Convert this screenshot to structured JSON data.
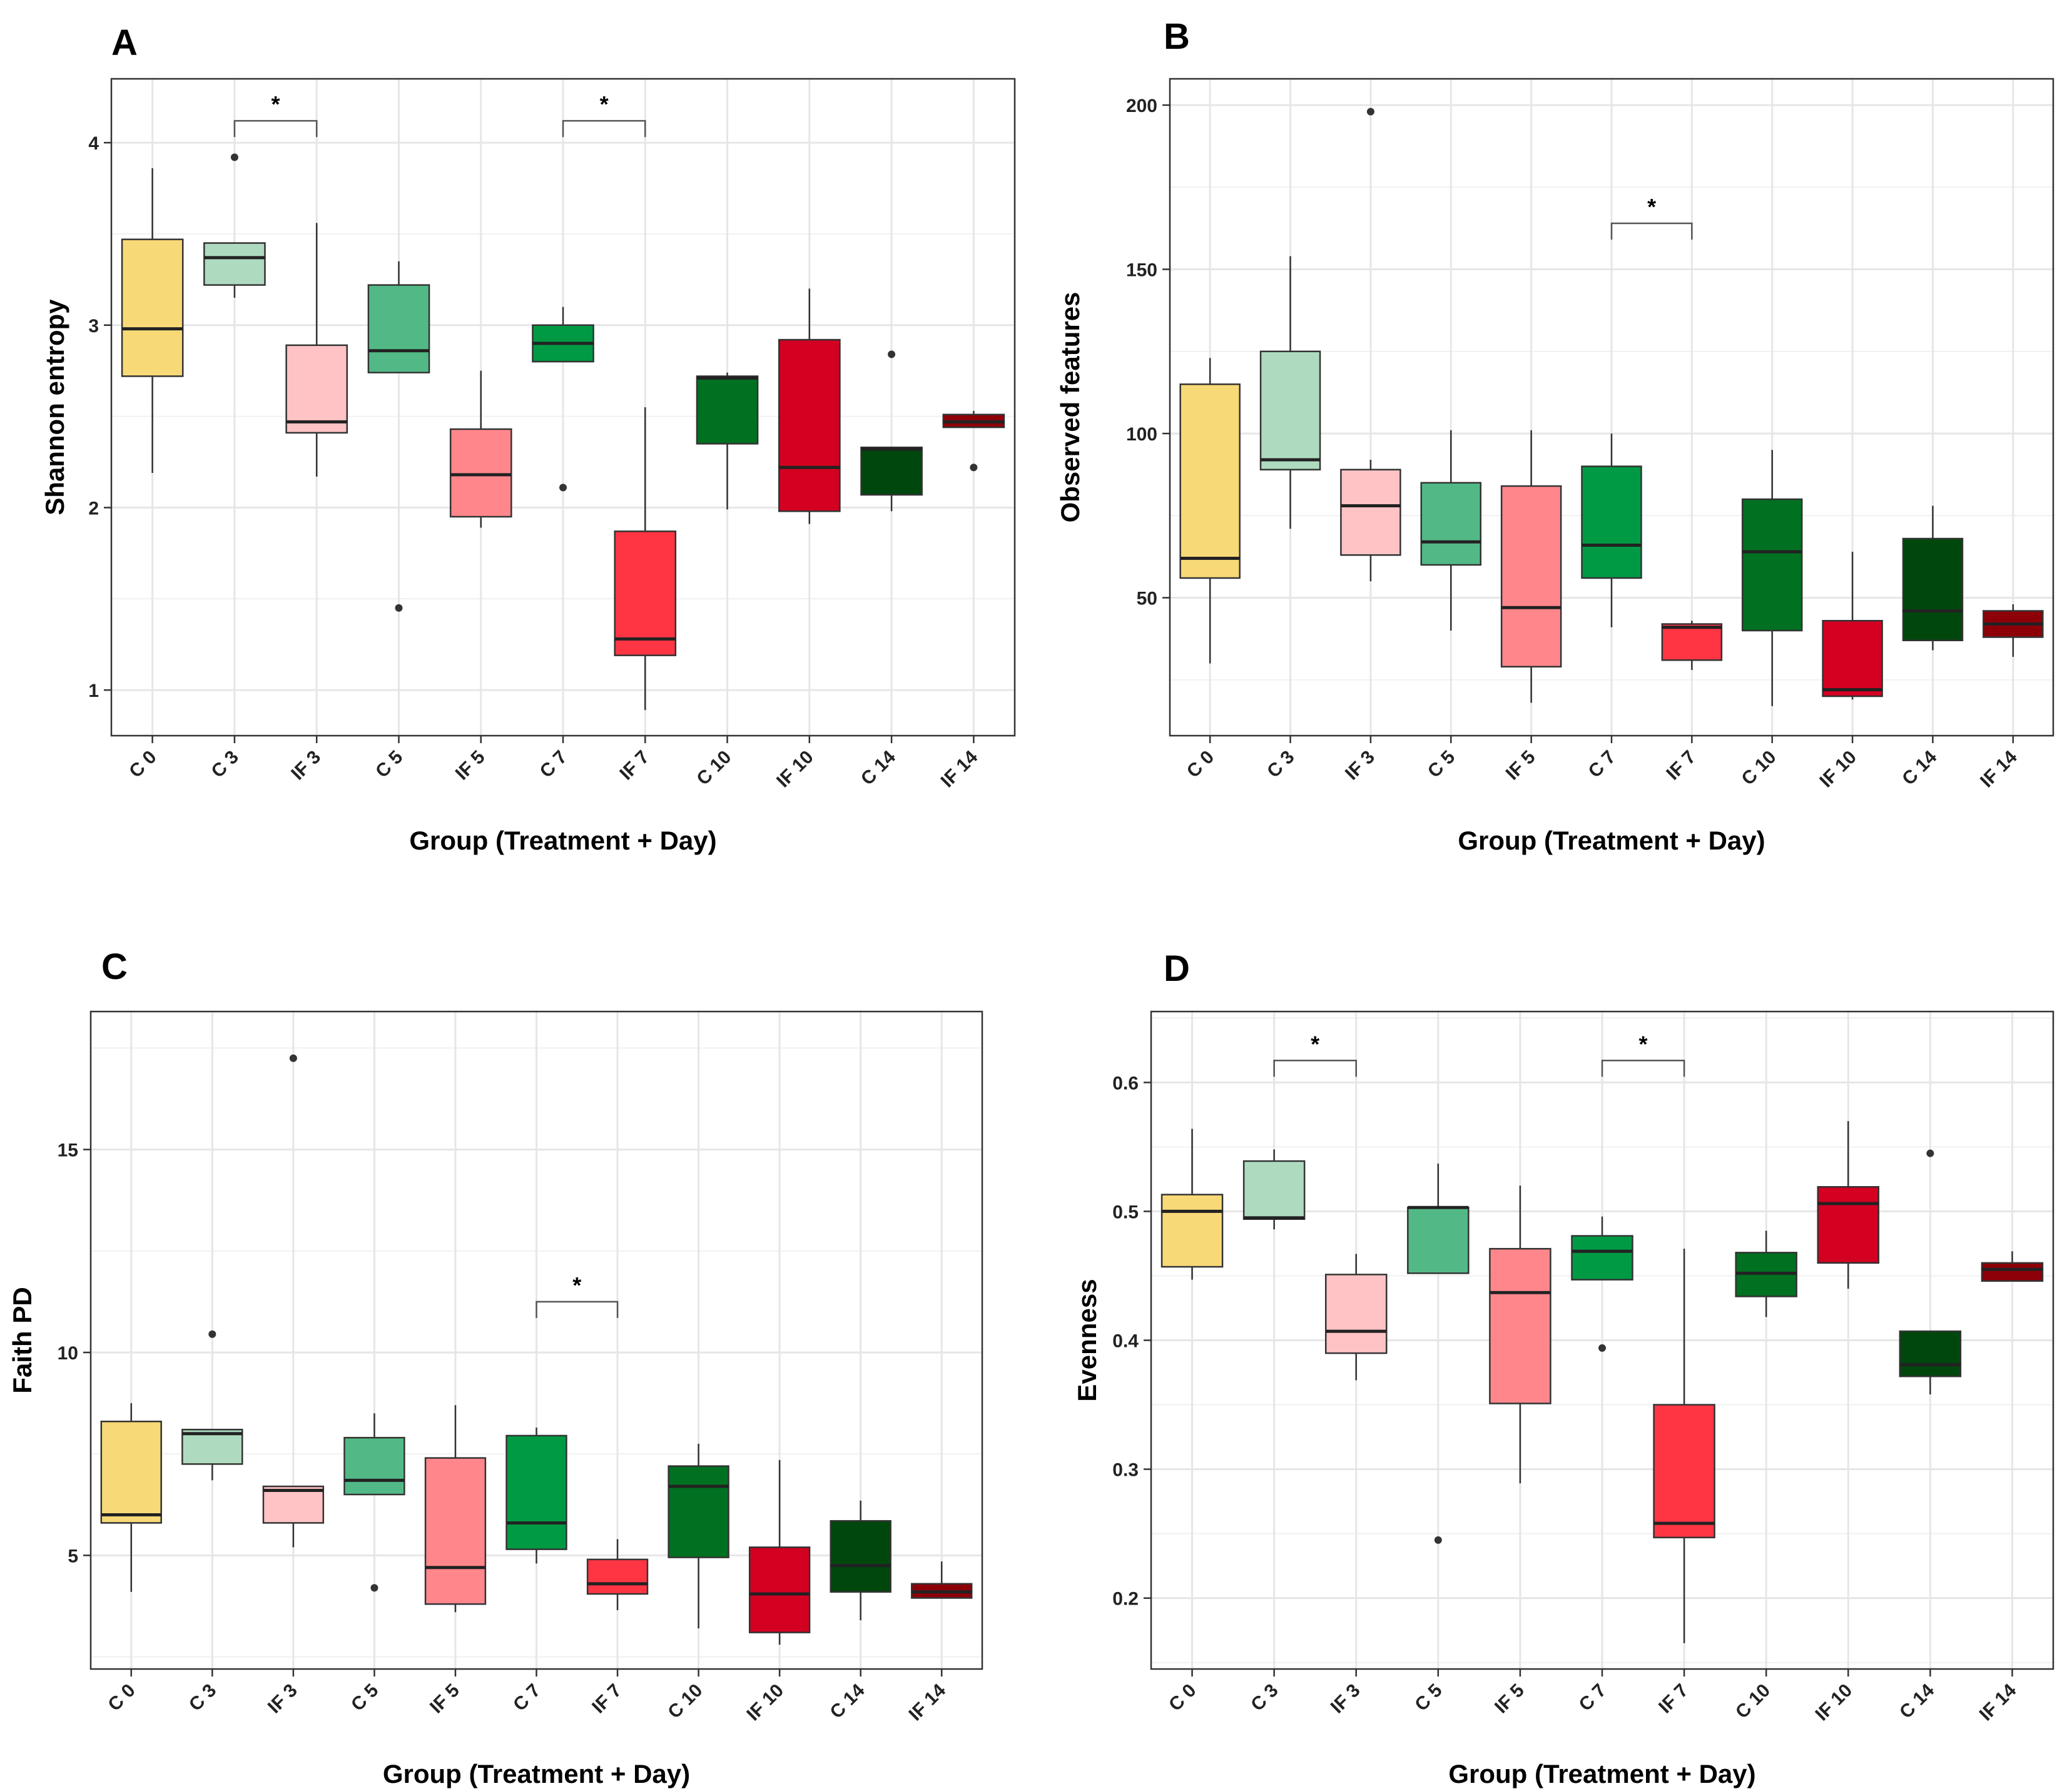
{
  "colors": {
    "C 0": "#F8D977",
    "C 3": "#AEDBBF",
    "IF 3": "#FFC3C5",
    "C 5": "#52B986",
    "IF 5": "#FF878C",
    "C 7": "#009A44",
    "IF 7": "#FF3544",
    "C 10": "#007021",
    "IF 10": "#D30021",
    "C 14": "#00470D",
    "IF 14": "#8E0008"
  },
  "chart_data": [
    {
      "panel": "A",
      "type": "box",
      "title": "",
      "xlabel": "Group (Treatment + Day)",
      "ylabel": "Shannon entropy",
      "ylim": [
        0.75,
        4.35
      ],
      "yticks": [
        1,
        2,
        3,
        4
      ],
      "categories": [
        "C 0",
        "C 3",
        "IF 3",
        "C 5",
        "IF 5",
        "C 7",
        "IF 7",
        "C 10",
        "IF 10",
        "C 14",
        "IF 14"
      ],
      "boxes": [
        {
          "group": "C 0",
          "min": 2.19,
          "q1": 2.72,
          "median": 2.98,
          "q3": 3.47,
          "max": 3.86,
          "outliers": []
        },
        {
          "group": "C 3",
          "min": 3.15,
          "q1": 3.22,
          "median": 3.37,
          "q3": 3.45,
          "max": 3.45,
          "outliers": [
            3.92
          ]
        },
        {
          "group": "IF 3",
          "min": 2.17,
          "q1": 2.41,
          "median": 2.47,
          "q3": 2.89,
          "max": 3.56,
          "outliers": []
        },
        {
          "group": "C 5",
          "min": 2.74,
          "q1": 2.74,
          "median": 2.86,
          "q3": 3.22,
          "max": 3.35,
          "outliers": [
            1.45
          ]
        },
        {
          "group": "IF 5",
          "min": 1.89,
          "q1": 1.95,
          "median": 2.18,
          "q3": 2.43,
          "max": 2.75,
          "outliers": []
        },
        {
          "group": "C 7",
          "min": 2.8,
          "q1": 2.8,
          "median": 2.9,
          "q3": 3.0,
          "max": 3.1,
          "outliers": [
            2.11
          ]
        },
        {
          "group": "IF 7",
          "min": 0.89,
          "q1": 1.19,
          "median": 1.28,
          "q3": 1.87,
          "max": 2.55,
          "outliers": []
        },
        {
          "group": "C 10",
          "min": 1.99,
          "q1": 2.35,
          "median": 2.71,
          "q3": 2.72,
          "max": 2.74,
          "outliers": []
        },
        {
          "group": "IF 10",
          "min": 1.91,
          "q1": 1.98,
          "median": 2.22,
          "q3": 2.92,
          "max": 3.2,
          "outliers": []
        },
        {
          "group": "C 14",
          "min": 1.98,
          "q1": 2.07,
          "median": 2.32,
          "q3": 2.33,
          "max": 2.33,
          "outliers": [
            2.84
          ]
        },
        {
          "group": "IF 14",
          "min": 2.44,
          "q1": 2.44,
          "median": 2.47,
          "q3": 2.51,
          "max": 2.53,
          "outliers": [
            2.22
          ]
        }
      ],
      "significance": [
        {
          "from": "C 3",
          "to": "IF 3",
          "y": 4.12,
          "label": "*"
        },
        {
          "from": "C 7",
          "to": "IF 7",
          "y": 4.12,
          "label": "*"
        }
      ]
    },
    {
      "panel": "B",
      "type": "box",
      "title": "",
      "xlabel": "Group (Treatment + Day)",
      "ylabel": "Observed features",
      "ylim": [
        8,
        208
      ],
      "yticks": [
        50,
        100,
        150,
        200
      ],
      "categories": [
        "C 0",
        "C 3",
        "IF 3",
        "C 5",
        "IF 5",
        "C 7",
        "IF 7",
        "C 10",
        "IF 10",
        "C 14",
        "IF 14"
      ],
      "boxes": [
        {
          "group": "C 0",
          "min": 30,
          "q1": 56,
          "median": 62,
          "q3": 115,
          "max": 123,
          "outliers": []
        },
        {
          "group": "C 3",
          "min": 71,
          "q1": 89,
          "median": 92,
          "q3": 125,
          "max": 154,
          "outliers": []
        },
        {
          "group": "IF 3",
          "min": 55,
          "q1": 63,
          "median": 78,
          "q3": 89,
          "max": 92,
          "outliers": [
            198
          ]
        },
        {
          "group": "C 5",
          "min": 40,
          "q1": 60,
          "median": 67,
          "q3": 85,
          "max": 101,
          "outliers": []
        },
        {
          "group": "IF 5",
          "min": 18,
          "q1": 29,
          "median": 47,
          "q3": 84,
          "max": 101,
          "outliers": []
        },
        {
          "group": "C 7",
          "min": 41,
          "q1": 56,
          "median": 66,
          "q3": 90,
          "max": 100,
          "outliers": []
        },
        {
          "group": "IF 7",
          "min": 28,
          "q1": 31,
          "median": 41,
          "q3": 42,
          "max": 43,
          "outliers": []
        },
        {
          "group": "C 10",
          "min": 17,
          "q1": 40,
          "median": 64,
          "q3": 80,
          "max": 95,
          "outliers": []
        },
        {
          "group": "IF 10",
          "min": 19,
          "q1": 20,
          "median": 22,
          "q3": 43,
          "max": 64,
          "outliers": []
        },
        {
          "group": "C 14",
          "min": 34,
          "q1": 37,
          "median": 46,
          "q3": 68,
          "max": 78,
          "outliers": []
        },
        {
          "group": "IF 14",
          "min": 32,
          "q1": 38,
          "median": 42,
          "q3": 46,
          "max": 48,
          "outliers": []
        }
      ],
      "significance": [
        {
          "from": "C 7",
          "to": "IF 7",
          "y": 164,
          "label": "*"
        }
      ]
    },
    {
      "panel": "C",
      "type": "box",
      "title": "",
      "xlabel": "Group (Treatment + Day)",
      "ylabel": "Faith PD",
      "ylim": [
        2.2,
        18.4
      ],
      "yticks": [
        5,
        10,
        15
      ],
      "categories": [
        "C 0",
        "C 3",
        "IF 3",
        "C 5",
        "IF 5",
        "C 7",
        "IF 7",
        "C 10",
        "IF 10",
        "C 14",
        "IF 14"
      ],
      "boxes": [
        {
          "group": "C 0",
          "min": 4.1,
          "q1": 5.8,
          "median": 6.0,
          "q3": 8.3,
          "max": 8.75,
          "outliers": []
        },
        {
          "group": "C 3",
          "min": 6.85,
          "q1": 7.25,
          "median": 8.0,
          "q3": 8.1,
          "max": 8.1,
          "outliers": [
            10.45
          ]
        },
        {
          "group": "IF 3",
          "min": 5.2,
          "q1": 5.8,
          "median": 6.6,
          "q3": 6.7,
          "max": 6.7,
          "outliers": [
            17.25
          ]
        },
        {
          "group": "C 5",
          "min": 6.5,
          "q1": 6.5,
          "median": 6.85,
          "q3": 7.9,
          "max": 8.5,
          "outliers": [
            4.2
          ]
        },
        {
          "group": "IF 5",
          "min": 3.6,
          "q1": 3.8,
          "median": 4.7,
          "q3": 7.4,
          "max": 8.7,
          "outliers": []
        },
        {
          "group": "C 7",
          "min": 4.8,
          "q1": 5.15,
          "median": 5.8,
          "q3": 7.95,
          "max": 8.15,
          "outliers": []
        },
        {
          "group": "IF 7",
          "min": 3.65,
          "q1": 4.05,
          "median": 4.3,
          "q3": 4.9,
          "max": 5.4,
          "outliers": []
        },
        {
          "group": "C 10",
          "min": 3.2,
          "q1": 4.95,
          "median": 6.7,
          "q3": 7.2,
          "max": 7.75,
          "outliers": []
        },
        {
          "group": "IF 10",
          "min": 2.8,
          "q1": 3.1,
          "median": 4.05,
          "q3": 5.2,
          "max": 7.35,
          "outliers": []
        },
        {
          "group": "C 14",
          "min": 3.4,
          "q1": 4.1,
          "median": 4.75,
          "q3": 5.85,
          "max": 6.35,
          "outliers": []
        },
        {
          "group": "IF 14",
          "min": 3.95,
          "q1": 3.95,
          "median": 4.1,
          "q3": 4.3,
          "max": 4.85,
          "outliers": []
        }
      ],
      "significance": [
        {
          "from": "C 7",
          "to": "IF 7",
          "y": 11.25,
          "label": "*"
        }
      ]
    },
    {
      "panel": "D",
      "type": "box",
      "title": "",
      "xlabel": "Group (Treatment + Day)",
      "ylabel": "Evenness",
      "ylim": [
        0.145,
        0.655
      ],
      "yticks": [
        0.2,
        0.3,
        0.4,
        0.5,
        0.6
      ],
      "categories": [
        "C 0",
        "C 3",
        "IF 3",
        "C 5",
        "IF 5",
        "C 7",
        "IF 7",
        "C 10",
        "IF 10",
        "C 14",
        "IF 14"
      ],
      "boxes": [
        {
          "group": "C 0",
          "min": 0.447,
          "q1": 0.457,
          "median": 0.5,
          "q3": 0.513,
          "max": 0.564,
          "outliers": []
        },
        {
          "group": "C 3",
          "min": 0.486,
          "q1": 0.494,
          "median": 0.495,
          "q3": 0.539,
          "max": 0.548,
          "outliers": []
        },
        {
          "group": "IF 3",
          "min": 0.369,
          "q1": 0.39,
          "median": 0.407,
          "q3": 0.451,
          "max": 0.467,
          "outliers": []
        },
        {
          "group": "C 5",
          "min": 0.452,
          "q1": 0.452,
          "median": 0.503,
          "q3": 0.503,
          "max": 0.537,
          "outliers": [
            0.245
          ]
        },
        {
          "group": "IF 5",
          "min": 0.289,
          "q1": 0.351,
          "median": 0.437,
          "q3": 0.471,
          "max": 0.52,
          "outliers": []
        },
        {
          "group": "C 7",
          "min": 0.447,
          "q1": 0.447,
          "median": 0.469,
          "q3": 0.481,
          "max": 0.496,
          "outliers": [
            0.394
          ]
        },
        {
          "group": "IF 7",
          "min": 0.165,
          "q1": 0.247,
          "median": 0.258,
          "q3": 0.35,
          "max": 0.471,
          "outliers": []
        },
        {
          "group": "C 10",
          "min": 0.418,
          "q1": 0.434,
          "median": 0.452,
          "q3": 0.468,
          "max": 0.485,
          "outliers": []
        },
        {
          "group": "IF 10",
          "min": 0.44,
          "q1": 0.46,
          "median": 0.506,
          "q3": 0.519,
          "max": 0.57,
          "outliers": []
        },
        {
          "group": "C 14",
          "min": 0.358,
          "q1": 0.372,
          "median": 0.381,
          "q3": 0.407,
          "max": 0.407,
          "outliers": [
            0.545
          ]
        },
        {
          "group": "IF 14",
          "min": 0.446,
          "q1": 0.446,
          "median": 0.455,
          "q3": 0.46,
          "max": 0.469,
          "outliers": []
        }
      ],
      "significance": [
        {
          "from": "C 3",
          "to": "IF 3",
          "y": 0.617,
          "label": "*"
        },
        {
          "from": "C 7",
          "to": "IF 7",
          "y": 0.617,
          "label": "*"
        }
      ]
    }
  ]
}
